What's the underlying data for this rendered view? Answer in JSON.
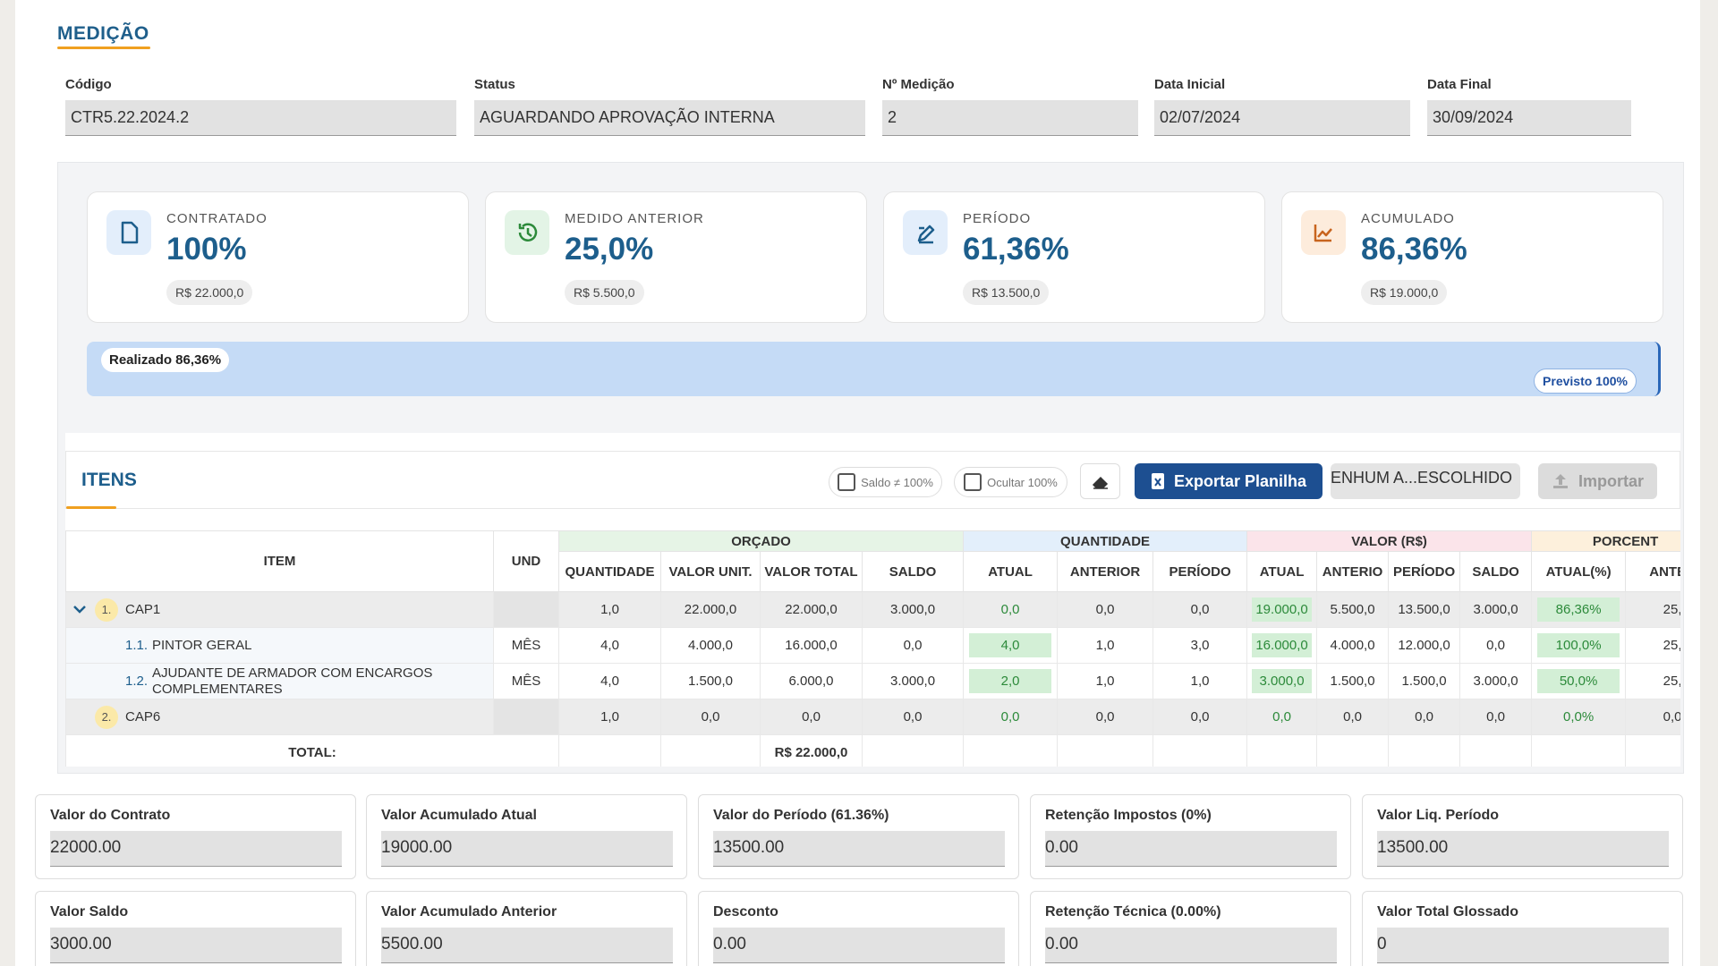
{
  "header": {
    "title": "MEDIÇÃO"
  },
  "fields": [
    {
      "label": "Código",
      "value": "CTR5.22.2024.2"
    },
    {
      "label": "Status",
      "value": "AGUARDANDO APROVAÇÃO INTERNA"
    },
    {
      "label": "Nº Medição",
      "value": "2"
    },
    {
      "label": "Data Inicial",
      "value": "02/07/2024"
    },
    {
      "label": "Data Final",
      "value": "30/09/2024"
    }
  ],
  "cards": [
    {
      "label": "CONTRATADO",
      "percent": "100%",
      "amount": "R$ 22.000,0"
    },
    {
      "label": "MEDIDO ANTERIOR",
      "percent": "25,0%",
      "amount": "R$ 5.500,0"
    },
    {
      "label": "PERÍODO",
      "percent": "61,36%",
      "amount": "R$ 13.500,0"
    },
    {
      "label": "ACUMULADO",
      "percent": "86,36%",
      "amount": "R$ 19.000,0"
    }
  ],
  "progress": {
    "realizado": "Realizado 86,36%",
    "previsto": "Previsto 100%"
  },
  "items": {
    "title": "ITENS",
    "filters": [
      "Saldo ≠ 100%",
      "Ocultar 100%"
    ],
    "export": "Exportar Planilha",
    "file": "ENHUM A...ESCOLHIDO",
    "import": "Importar"
  },
  "table": {
    "item_header": "ITEM",
    "und_header": "UND",
    "groups": [
      {
        "label": "ORÇADO",
        "columns": [
          "QUANTIDADE",
          "VALOR UNIT.",
          "VALOR TOTAL",
          "SALDO"
        ]
      },
      {
        "label": "QUANTIDADE",
        "columns": [
          "ATUAL",
          "ANTERIOR",
          "PERÍODO"
        ]
      },
      {
        "label": "VALOR (R$)",
        "columns": [
          "ATUAL",
          "ANTERIO",
          "PERÍODO",
          "SALDO"
        ]
      },
      {
        "label": "PORCENT",
        "columns": [
          "ATUAL(%)",
          "ANTER"
        ]
      }
    ],
    "rows": [
      {
        "num": "1.",
        "name": "CAP1",
        "values": [
          "1,0",
          "22.000,0",
          "22.000,0",
          "3.000,0",
          "0,0",
          "0,0",
          "0,0",
          "19.000,0",
          "5.500,0",
          "13.500,0",
          "3.000,0",
          "86,36%",
          "25,"
        ]
      },
      {
        "num": "1.1.",
        "name": "PINTOR GERAL",
        "und": "MÊS",
        "values": [
          "4,0",
          "4.000,0",
          "16.000,0",
          "0,0",
          "4,0",
          "1,0",
          "3,0",
          "16.000,0",
          "4.000,0",
          "12.000,0",
          "0,0",
          "100,0%",
          "25,"
        ]
      },
      {
        "num": "1.2.",
        "name": "AJUDANTE DE ARMADOR COM ENCARGOS COMPLEMENTARES",
        "und": "MÊS",
        "values": [
          "4,0",
          "1.500,0",
          "6.000,0",
          "3.000,0",
          "2,0",
          "1,0",
          "1,0",
          "3.000,0",
          "1.500,0",
          "1.500,0",
          "3.000,0",
          "50,0%",
          "25,"
        ]
      },
      {
        "num": "2.",
        "name": "CAP6",
        "values": [
          "1,0",
          "0,0",
          "0,0",
          "0,0",
          "0,0",
          "0,0",
          "0,0",
          "0,0",
          "0,0",
          "0,0",
          "0,0",
          "0,0%",
          "0,0"
        ]
      }
    ],
    "total": {
      "label": "TOTAL:",
      "value": "R$ 22.000,0"
    }
  },
  "summary": [
    {
      "label": "Valor do Contrato",
      "value": "22000.00"
    },
    {
      "label": "Valor Acumulado Atual",
      "value": "19000.00"
    },
    {
      "label": "Valor do Período (61.36%)",
      "value": "13500.00"
    },
    {
      "label": "Retenção Impostos (0%)",
      "value": "0.00"
    },
    {
      "label": "Valor Liq. Período",
      "value": "13500.00"
    },
    {
      "label": "Valor Saldo",
      "value": "3000.00"
    },
    {
      "label": "Valor Acumulado Anterior",
      "value": "5500.00"
    },
    {
      "label": "Desconto",
      "value": "0.00"
    },
    {
      "label": "Retenção Técnica (0.00%)",
      "value": "0.00"
    },
    {
      "label": "Valor Total Glossado",
      "value": "0"
    }
  ]
}
